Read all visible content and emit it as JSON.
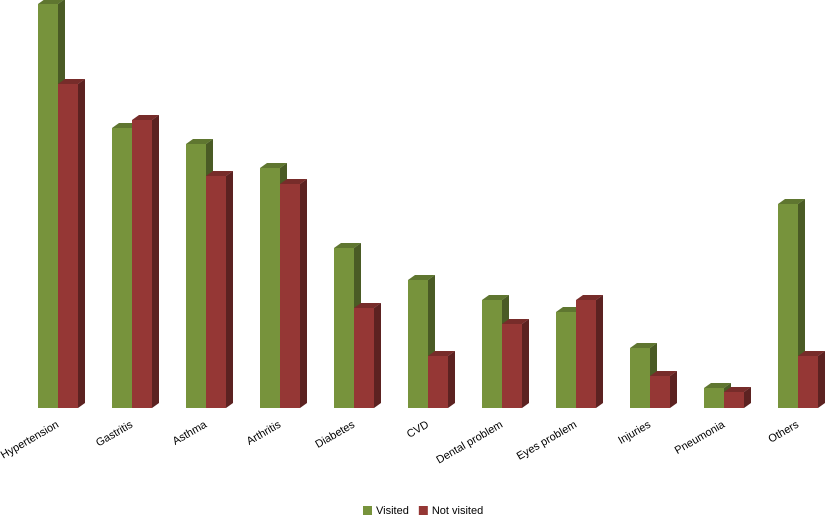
{
  "chart_data": {
    "type": "bar3d",
    "categories": [
      "Hypertension",
      "Gastritis",
      "Asthma",
      "Arthritis",
      "Diabetes",
      "CVD",
      "Dental problem",
      "Eyes problem",
      "Injuries",
      "Pneumonia",
      "Others"
    ],
    "series": [
      {
        "name": "Visited",
        "color": "#77933c",
        "values": [
          101,
          70,
          66,
          60,
          40,
          32,
          27,
          24,
          15,
          5,
          51
        ]
      },
      {
        "name": "Not visited",
        "color": "#953735",
        "values": [
          81,
          72,
          58,
          56,
          25,
          13,
          21,
          27,
          8,
          4,
          13
        ]
      }
    ]
  }
}
